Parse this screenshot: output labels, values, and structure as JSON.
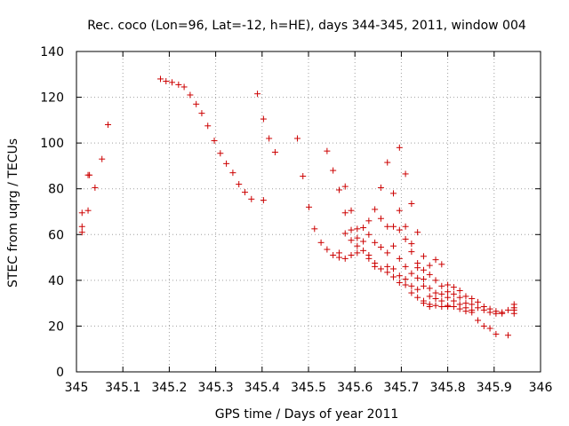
{
  "chart_data": {
    "type": "scatter",
    "title": "Rec. coco (Lon=96, Lat=-12, h=HE), days 344-345, 2011, window 004",
    "xlabel": "GPS time / Days of year 2011",
    "ylabel": "STEC from uqrg / TECUs",
    "xlim": [
      345,
      346
    ],
    "ylim": [
      0,
      140
    ],
    "xticks": [
      345,
      345.1,
      345.2,
      345.3,
      345.4,
      345.5,
      345.6,
      345.7,
      345.8,
      345.9,
      346
    ],
    "xtick_labels": [
      "345",
      "345.1",
      "345.2",
      "345.3",
      "345.4",
      "345.5",
      "345.6",
      "345.7",
      "345.8",
      "345.9",
      "346"
    ],
    "yticks": [
      0,
      20,
      40,
      60,
      80,
      100,
      120,
      140
    ],
    "ytick_labels": [
      "0",
      "20",
      "40",
      "60",
      "80",
      "100",
      "120",
      "140"
    ],
    "grid": true,
    "marker": "plus",
    "color": "#cc0000",
    "points": [
      [
        345.012,
        61
      ],
      [
        345.012,
        63.5
      ],
      [
        345.012,
        69.5
      ],
      [
        345.025,
        70.5
      ],
      [
        345.025,
        86
      ],
      [
        345.028,
        86
      ],
      [
        345.04,
        80.5
      ],
      [
        345.055,
        93
      ],
      [
        345.068,
        108
      ],
      [
        345.181,
        128
      ],
      [
        345.193,
        127
      ],
      [
        345.206,
        126.5
      ],
      [
        345.22,
        125.5
      ],
      [
        345.232,
        124.5
      ],
      [
        345.245,
        121
      ],
      [
        345.258,
        117
      ],
      [
        345.27,
        113
      ],
      [
        345.283,
        107.5
      ],
      [
        345.297,
        101
      ],
      [
        345.31,
        95.5
      ],
      [
        345.323,
        91
      ],
      [
        345.337,
        87
      ],
      [
        345.35,
        82
      ],
      [
        345.363,
        78.5
      ],
      [
        345.377,
        75.5
      ],
      [
        345.39,
        121.5
      ],
      [
        345.403,
        110.5
      ],
      [
        345.415,
        102
      ],
      [
        345.428,
        96
      ],
      [
        345.403,
        75
      ],
      [
        345.476,
        102
      ],
      [
        345.488,
        85.5
      ],
      [
        345.501,
        72
      ],
      [
        345.513,
        62.5
      ],
      [
        345.527,
        56.5
      ],
      [
        345.54,
        96.5
      ],
      [
        345.54,
        53.5
      ],
      [
        345.553,
        88
      ],
      [
        345.553,
        51
      ],
      [
        345.566,
        79.5
      ],
      [
        345.566,
        52
      ],
      [
        345.566,
        50
      ],
      [
        345.579,
        81
      ],
      [
        345.579,
        69.5
      ],
      [
        345.579,
        60.5
      ],
      [
        345.579,
        49.5
      ],
      [
        345.592,
        70.5
      ],
      [
        345.592,
        62
      ],
      [
        345.592,
        57.5
      ],
      [
        345.592,
        51
      ],
      [
        345.605,
        62.5
      ],
      [
        345.605,
        58.5
      ],
      [
        345.605,
        55
      ],
      [
        345.605,
        52
      ],
      [
        345.618,
        63
      ],
      [
        345.618,
        57
      ],
      [
        345.618,
        53
      ],
      [
        345.63,
        66
      ],
      [
        345.63,
        60
      ],
      [
        345.63,
        51
      ],
      [
        345.63,
        49.5
      ],
      [
        345.643,
        71
      ],
      [
        345.643,
        56.5
      ],
      [
        345.643,
        47.5
      ],
      [
        345.643,
        46
      ],
      [
        345.656,
        80.5
      ],
      [
        345.656,
        67
      ],
      [
        345.656,
        54.5
      ],
      [
        345.656,
        45
      ],
      [
        345.67,
        91.5
      ],
      [
        345.67,
        63.5
      ],
      [
        345.67,
        52
      ],
      [
        345.67,
        46
      ],
      [
        345.67,
        43.5
      ],
      [
        345.683,
        78
      ],
      [
        345.683,
        63.5
      ],
      [
        345.683,
        55
      ],
      [
        345.683,
        45
      ],
      [
        345.683,
        41.5
      ],
      [
        345.696,
        98
      ],
      [
        345.696,
        70.5
      ],
      [
        345.696,
        62
      ],
      [
        345.696,
        49.5
      ],
      [
        345.696,
        42
      ],
      [
        345.696,
        39
      ],
      [
        345.709,
        86.5
      ],
      [
        345.709,
        63.5
      ],
      [
        345.709,
        58
      ],
      [
        345.709,
        46
      ],
      [
        345.709,
        40.5
      ],
      [
        345.709,
        38
      ],
      [
        345.722,
        73.5
      ],
      [
        345.722,
        56
      ],
      [
        345.722,
        52.5
      ],
      [
        345.722,
        43
      ],
      [
        345.722,
        37.5
      ],
      [
        345.722,
        34.5
      ],
      [
        345.735,
        61
      ],
      [
        345.735,
        47.5
      ],
      [
        345.735,
        45.5
      ],
      [
        345.735,
        41
      ],
      [
        345.735,
        36
      ],
      [
        345.735,
        32.5
      ],
      [
        345.748,
        50.5
      ],
      [
        345.748,
        44.5
      ],
      [
        345.748,
        40.5
      ],
      [
        345.748,
        37.5
      ],
      [
        345.748,
        31
      ],
      [
        345.748,
        30
      ],
      [
        345.761,
        46.5
      ],
      [
        345.761,
        42.5
      ],
      [
        345.761,
        36.5
      ],
      [
        345.761,
        33
      ],
      [
        345.761,
        29.5
      ],
      [
        345.761,
        28.5
      ],
      [
        345.774,
        49
      ],
      [
        345.774,
        40
      ],
      [
        345.774,
        34.5
      ],
      [
        345.774,
        32
      ],
      [
        345.774,
        29
      ],
      [
        345.787,
        47
      ],
      [
        345.787,
        37.5
      ],
      [
        345.787,
        34
      ],
      [
        345.787,
        31
      ],
      [
        345.787,
        28.5
      ],
      [
        345.8,
        38
      ],
      [
        345.8,
        35
      ],
      [
        345.8,
        32.5
      ],
      [
        345.8,
        29
      ],
      [
        345.8,
        28.5
      ],
      [
        345.813,
        37
      ],
      [
        345.813,
        34
      ],
      [
        345.813,
        31
      ],
      [
        345.813,
        28.5
      ],
      [
        345.826,
        35.5
      ],
      [
        345.826,
        32.5
      ],
      [
        345.826,
        29.5
      ],
      [
        345.826,
        27.5
      ],
      [
        345.839,
        33
      ],
      [
        345.839,
        30
      ],
      [
        345.839,
        28
      ],
      [
        345.839,
        26.5
      ],
      [
        345.852,
        32
      ],
      [
        345.852,
        29.5
      ],
      [
        345.852,
        27
      ],
      [
        345.852,
        26
      ],
      [
        345.865,
        30.5
      ],
      [
        345.865,
        28
      ],
      [
        345.865,
        22.5
      ],
      [
        345.878,
        28.5
      ],
      [
        345.878,
        27
      ],
      [
        345.878,
        20
      ],
      [
        345.891,
        27.5
      ],
      [
        345.891,
        26
      ],
      [
        345.891,
        19
      ],
      [
        345.904,
        26.5
      ],
      [
        345.904,
        25.5
      ],
      [
        345.904,
        16.5
      ],
      [
        345.917,
        26
      ],
      [
        345.917,
        25.5
      ],
      [
        345.93,
        27
      ],
      [
        345.93,
        16
      ],
      [
        345.943,
        28
      ],
      [
        345.943,
        27
      ],
      [
        345.943,
        29.5
      ],
      [
        345.943,
        25.5
      ]
    ]
  }
}
